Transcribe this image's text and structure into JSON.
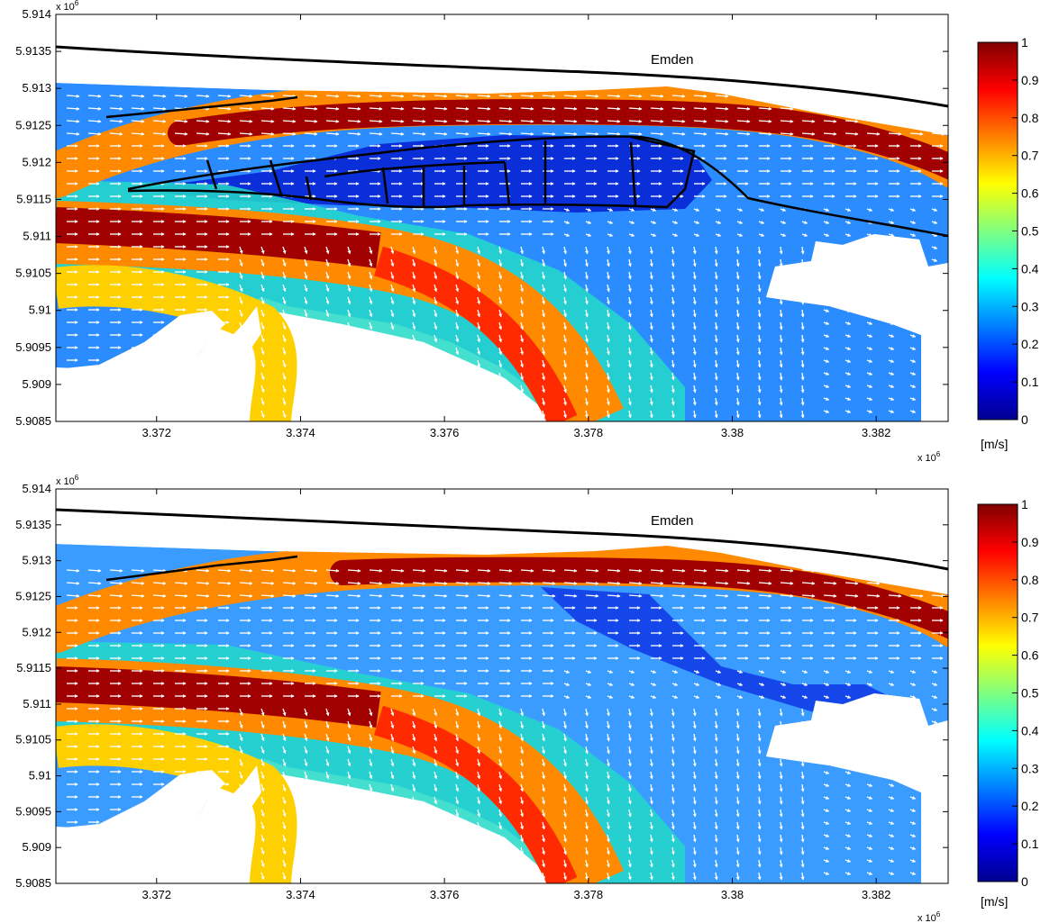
{
  "chart_data": [
    {
      "type": "heatmap",
      "place_label": "Emden",
      "x_exponent_label": "x 10",
      "x_exponent_power": "6",
      "y_exponent_label": "x 10",
      "y_exponent_power": "6",
      "xlim": [
        3.3706,
        3.383
      ],
      "ylim": [
        5.9085,
        5.914
      ],
      "x_ticks": [
        3.372,
        3.374,
        3.376,
        3.378,
        3.38,
        3.382
      ],
      "x_tick_labels": [
        "3.372",
        "3.374",
        "3.376",
        "3.378",
        "3.38",
        "3.382"
      ],
      "y_ticks": [
        5.9085,
        5.909,
        5.9095,
        5.91,
        5.9105,
        5.911,
        5.9115,
        5.912,
        5.9125,
        5.913,
        5.9135,
        5.914
      ],
      "y_tick_labels": [
        "5.9085",
        "5.909",
        "5.9095",
        "5.91",
        "5.9105",
        "5.911",
        "5.9115",
        "5.912",
        "5.9125",
        "5.913",
        "5.9135",
        "5.914"
      ],
      "colorbar": {
        "range": [
          0,
          1
        ],
        "ticks": [
          0,
          0.1,
          0.2,
          0.3,
          0.4,
          0.5,
          0.6,
          0.7,
          0.8,
          0.9,
          1
        ],
        "tick_labels": [
          "0",
          "0.1",
          "0.2",
          "0.3",
          "0.4",
          "0.5",
          "0.6",
          "0.7",
          "0.8",
          "0.9",
          "1"
        ],
        "unit_label": "[m/s]",
        "colormap": "jet"
      },
      "shows_structure_outline": true,
      "vector_color": "#ffffff",
      "coastline_color": "#000000"
    },
    {
      "type": "heatmap",
      "place_label": "Emden",
      "x_exponent_label": "x 10",
      "x_exponent_power": "6",
      "y_exponent_label": "x 10",
      "y_exponent_power": "6",
      "xlim": [
        3.3706,
        3.383
      ],
      "ylim": [
        5.9085,
        5.914
      ],
      "x_ticks": [
        3.372,
        3.374,
        3.376,
        3.378,
        3.38,
        3.382
      ],
      "x_tick_labels": [
        "3.372",
        "3.374",
        "3.376",
        "3.378",
        "3.38",
        "3.382"
      ],
      "y_ticks": [
        5.9085,
        5.909,
        5.9095,
        5.91,
        5.9105,
        5.911,
        5.9115,
        5.912,
        5.9125,
        5.913,
        5.9135,
        5.914
      ],
      "y_tick_labels": [
        "5.9085",
        "5.909",
        "5.9095",
        "5.91",
        "5.9105",
        "5.911",
        "5.9115",
        "5.912",
        "5.9125",
        "5.913",
        "5.9135",
        "5.914"
      ],
      "colorbar": {
        "range": [
          0,
          1
        ],
        "ticks": [
          0,
          0.1,
          0.2,
          0.3,
          0.4,
          0.5,
          0.6,
          0.7,
          0.8,
          0.9,
          1
        ],
        "tick_labels": [
          "0",
          "0.1",
          "0.2",
          "0.3",
          "0.4",
          "0.5",
          "0.6",
          "0.7",
          "0.8",
          "0.9",
          "1"
        ],
        "unit_label": "[m/s]",
        "colormap": "jet"
      },
      "shows_structure_outline": false,
      "vector_color": "#ffffff",
      "coastline_color": "#000000"
    }
  ]
}
